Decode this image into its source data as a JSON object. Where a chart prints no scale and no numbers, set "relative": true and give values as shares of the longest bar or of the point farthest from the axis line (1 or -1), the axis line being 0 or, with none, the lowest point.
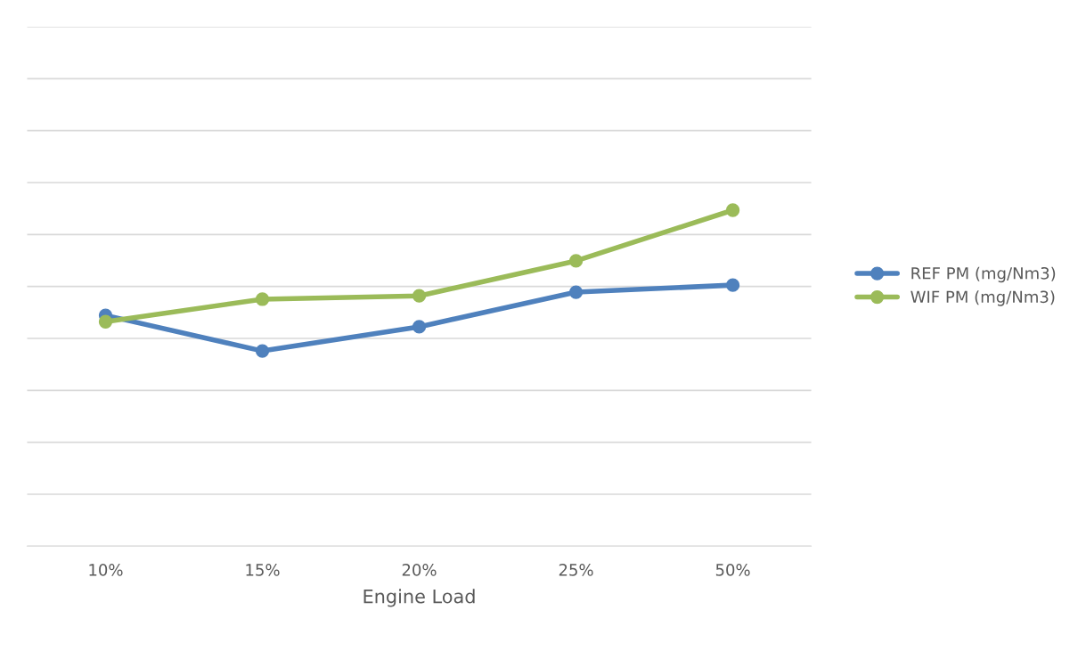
{
  "chart_data": {
    "type": "line",
    "xlabel": "Engine Load",
    "categories": [
      "10%",
      "15%",
      "20%",
      "25%",
      "50%"
    ],
    "relative": true,
    "grid": "y",
    "legend": "right",
    "marker": "circle",
    "line_style": "solid",
    "series": [
      {
        "name": "REF PM (mg/Nm3)",
        "color": "#4f81bd",
        "values": [
          0.687,
          0.581,
          0.653,
          0.756,
          0.777
        ]
      },
      {
        "name": "WIF PM (mg/Nm3)",
        "color": "#9bbb59",
        "values": [
          0.668,
          0.735,
          0.745,
          0.849,
          1.0
        ]
      }
    ]
  }
}
